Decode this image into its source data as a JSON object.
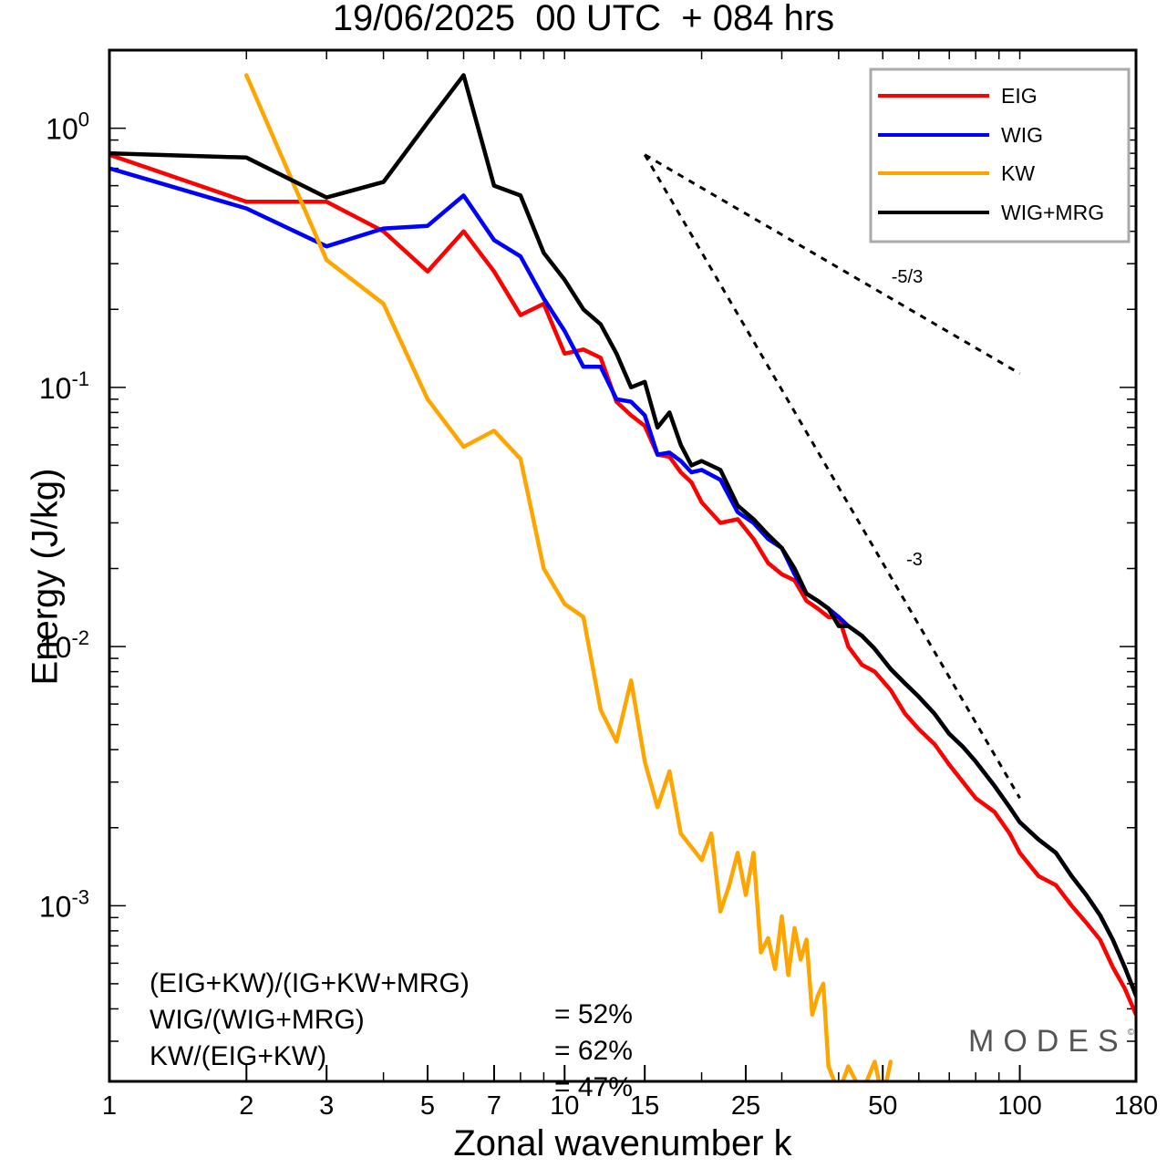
{
  "chart_title": "19/06/2025  00 UTC  + 084 hrs",
  "xlabel": "Zonal wavenumber k",
  "ylabel": "Energy (J/kg)",
  "brand": "MODES",
  "brand_mark": "©",
  "stats": [
    {
      "label": "(EIG+KW)/(IG+KW+MRG)",
      "value": "= 52%"
    },
    {
      "label": "WIG/(WIG+MRG)",
      "value": "= 62%"
    },
    {
      "label": "KW/(EIG+KW)",
      "value": "= 47%"
    }
  ],
  "chart_data": {
    "type": "line",
    "title": "19/06/2025  00 UTC  + 084 hrs",
    "xlabel": "Zonal wavenumber k",
    "ylabel": "Energy (J/kg)",
    "xscale": "log",
    "yscale": "log",
    "xlim": [
      1,
      180
    ],
    "ylim": [
      0.00021,
      2.0
    ],
    "xticks": [
      1,
      2,
      3,
      5,
      7,
      10,
      15,
      25,
      50,
      100,
      180
    ],
    "yticks": [
      {
        "value": 0.001,
        "base": "10",
        "exp": "-3"
      },
      {
        "value": 0.01,
        "base": "10",
        "exp": "-2"
      },
      {
        "value": 0.1,
        "base": "10",
        "exp": "-1"
      },
      {
        "value": 1,
        "base": "10",
        "exp": "0"
      }
    ],
    "grid": false,
    "legend_position": "top-right",
    "series": [
      {
        "name": "EIG",
        "color": "#ff0000",
        "points": [
          [
            1,
            0.79
          ],
          [
            2,
            0.52
          ],
          [
            3,
            0.52
          ],
          [
            4,
            0.4
          ],
          [
            5,
            0.28
          ],
          [
            6,
            0.4
          ],
          [
            7,
            0.28
          ],
          [
            8,
            0.19
          ],
          [
            9,
            0.21
          ],
          [
            10,
            0.135
          ],
          [
            11,
            0.14
          ],
          [
            12,
            0.13
          ],
          [
            13,
            0.088
          ],
          [
            14,
            0.078
          ],
          [
            15,
            0.071
          ],
          [
            16,
            0.055
          ],
          [
            17,
            0.054
          ],
          [
            18,
            0.047
          ],
          [
            19,
            0.043
          ],
          [
            20,
            0.036
          ],
          [
            22,
            0.03
          ],
          [
            24,
            0.031
          ],
          [
            26,
            0.026
          ],
          [
            28,
            0.021
          ],
          [
            30,
            0.019
          ],
          [
            32,
            0.018
          ],
          [
            34,
            0.015
          ],
          [
            36,
            0.014
          ],
          [
            38,
            0.013
          ],
          [
            40,
            0.013
          ],
          [
            42,
            0.01
          ],
          [
            45,
            0.0085
          ],
          [
            48,
            0.008
          ],
          [
            52,
            0.0068
          ],
          [
            56,
            0.0055
          ],
          [
            60,
            0.0048
          ],
          [
            65,
            0.0042
          ],
          [
            70,
            0.0035
          ],
          [
            75,
            0.003
          ],
          [
            80,
            0.0026
          ],
          [
            88,
            0.0023
          ],
          [
            95,
            0.0019
          ],
          [
            100,
            0.0016
          ],
          [
            110,
            0.0013
          ],
          [
            120,
            0.0012
          ],
          [
            130,
            0.001
          ],
          [
            140,
            0.00086
          ],
          [
            150,
            0.00074
          ],
          [
            160,
            0.00058
          ],
          [
            170,
            0.00048
          ],
          [
            180,
            0.00038
          ]
        ]
      },
      {
        "name": "WIG",
        "color": "#0000ff",
        "points": [
          [
            1,
            0.7
          ],
          [
            2,
            0.49
          ],
          [
            3,
            0.35
          ],
          [
            4,
            0.41
          ],
          [
            5,
            0.42
          ],
          [
            6,
            0.55
          ],
          [
            7,
            0.37
          ],
          [
            8,
            0.32
          ],
          [
            9,
            0.22
          ],
          [
            10,
            0.165
          ],
          [
            11,
            0.12
          ],
          [
            12,
            0.12
          ],
          [
            13,
            0.09
          ],
          [
            14,
            0.088
          ],
          [
            15,
            0.078
          ],
          [
            16,
            0.055
          ],
          [
            17,
            0.056
          ],
          [
            18,
            0.052
          ],
          [
            19,
            0.047
          ],
          [
            20,
            0.048
          ],
          [
            22,
            0.044
          ],
          [
            24,
            0.033
          ],
          [
            26,
            0.03
          ],
          [
            28,
            0.026
          ],
          [
            30,
            0.024
          ],
          [
            32,
            0.019
          ],
          [
            34,
            0.016
          ],
          [
            36,
            0.015
          ],
          [
            38,
            0.014
          ],
          [
            40,
            0.013
          ],
          [
            42,
            0.012
          ],
          [
            45,
            0.011
          ],
          [
            48,
            0.0098
          ],
          [
            52,
            0.0082
          ],
          [
            56,
            0.0072
          ],
          [
            60,
            0.0064
          ],
          [
            65,
            0.0055
          ],
          [
            70,
            0.0046
          ],
          [
            75,
            0.0041
          ],
          [
            80,
            0.0036
          ],
          [
            88,
            0.0029
          ],
          [
            95,
            0.0024
          ],
          [
            100,
            0.0021
          ],
          [
            110,
            0.0018
          ],
          [
            120,
            0.0016
          ],
          [
            130,
            0.0013
          ],
          [
            140,
            0.0011
          ],
          [
            150,
            0.00092
          ],
          [
            160,
            0.00074
          ],
          [
            170,
            0.00058
          ],
          [
            180,
            0.00045
          ]
        ]
      },
      {
        "name": "KW",
        "color": "#ffa500",
        "points": [
          [
            2,
            1.6
          ],
          [
            3,
            0.31
          ],
          [
            4,
            0.21
          ],
          [
            5,
            0.09
          ],
          [
            6,
            0.059
          ],
          [
            7,
            0.068
          ],
          [
            8,
            0.053
          ],
          [
            9,
            0.02
          ],
          [
            10,
            0.0146
          ],
          [
            11,
            0.013
          ],
          [
            12,
            0.0057
          ],
          [
            13,
            0.0043
          ],
          [
            14,
            0.0074
          ],
          [
            15,
            0.0036
          ],
          [
            16,
            0.0024
          ],
          [
            17,
            0.0033
          ],
          [
            18,
            0.0019
          ],
          [
            20,
            0.0015
          ],
          [
            21,
            0.0019
          ],
          [
            22,
            0.00095
          ],
          [
            23,
            0.0012
          ],
          [
            24,
            0.0016
          ],
          [
            25,
            0.0011
          ],
          [
            26,
            0.0016
          ],
          [
            27,
            0.00066
          ],
          [
            28,
            0.00075
          ],
          [
            29,
            0.00057
          ],
          [
            30,
            0.00091
          ],
          [
            31,
            0.00054
          ],
          [
            32,
            0.00082
          ],
          [
            33,
            0.00062
          ],
          [
            34,
            0.00074
          ],
          [
            35,
            0.00038
          ],
          [
            36,
            0.00045
          ],
          [
            37,
            0.0005
          ],
          [
            38,
            0.00024
          ],
          [
            40,
            0.00019
          ],
          [
            42,
            0.00024
          ],
          [
            45,
            0.00019
          ],
          [
            48,
            0.00025
          ],
          [
            50,
            0.00018
          ],
          [
            52,
            0.00025
          ]
        ]
      },
      {
        "name": "WIG+MRG",
        "color": "#000000",
        "points": [
          [
            1,
            0.8
          ],
          [
            2,
            0.77
          ],
          [
            3,
            0.54
          ],
          [
            4,
            0.62
          ],
          [
            5,
            1.05
          ],
          [
            6,
            1.6
          ],
          [
            7,
            0.6
          ],
          [
            8,
            0.55
          ],
          [
            9,
            0.33
          ],
          [
            10,
            0.26
          ],
          [
            11,
            0.2
          ],
          [
            12,
            0.175
          ],
          [
            13,
            0.135
          ],
          [
            14,
            0.1
          ],
          [
            15,
            0.105
          ],
          [
            16,
            0.07
          ],
          [
            17,
            0.08
          ],
          [
            18,
            0.06
          ],
          [
            19,
            0.05
          ],
          [
            20,
            0.052
          ],
          [
            22,
            0.048
          ],
          [
            24,
            0.035
          ],
          [
            26,
            0.031
          ],
          [
            28,
            0.027
          ],
          [
            30,
            0.024
          ],
          [
            32,
            0.02
          ],
          [
            34,
            0.016
          ],
          [
            36,
            0.015
          ],
          [
            38,
            0.014
          ],
          [
            40,
            0.012
          ],
          [
            42,
            0.012
          ],
          [
            45,
            0.011
          ],
          [
            48,
            0.0098
          ],
          [
            52,
            0.0082
          ],
          [
            56,
            0.0072
          ],
          [
            60,
            0.0064
          ],
          [
            65,
            0.0055
          ],
          [
            70,
            0.0046
          ],
          [
            75,
            0.0041
          ],
          [
            80,
            0.0036
          ],
          [
            88,
            0.0029
          ],
          [
            95,
            0.0024
          ],
          [
            100,
            0.0021
          ],
          [
            110,
            0.0018
          ],
          [
            120,
            0.0016
          ],
          [
            130,
            0.0013
          ],
          [
            140,
            0.0011
          ],
          [
            150,
            0.00092
          ],
          [
            160,
            0.00074
          ],
          [
            170,
            0.00058
          ],
          [
            180,
            0.00045
          ]
        ]
      }
    ],
    "reference_lines": [
      {
        "label": "-5/3",
        "points": [
          [
            15,
            0.79
          ],
          [
            100,
            0.113
          ]
        ]
      },
      {
        "label": "-3",
        "points": [
          [
            15,
            0.79
          ],
          [
            100,
            0.0026
          ]
        ]
      }
    ]
  }
}
